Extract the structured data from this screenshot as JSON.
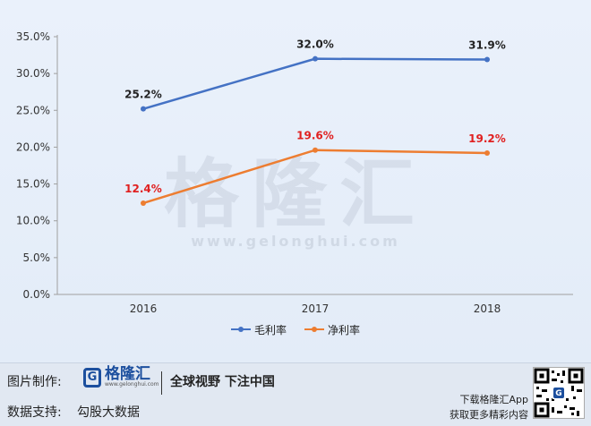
{
  "chart_data": {
    "type": "line",
    "categories": [
      "2016",
      "2017",
      "2018"
    ],
    "series": [
      {
        "name": "毛利率",
        "values": [
          25.2,
          32.0,
          31.9
        ],
        "labels": [
          "25.2%",
          "32.0%",
          "31.9%"
        ],
        "color": "#4472c4",
        "label_color": "#222222"
      },
      {
        "name": "净利率",
        "values": [
          12.4,
          19.6,
          19.2
        ],
        "labels": [
          "12.4%",
          "19.6%",
          "19.2%"
        ],
        "color": "#ed7d31",
        "label_color": "#e02020"
      }
    ],
    "ylim": [
      0,
      35
    ],
    "yticks": [
      "0.0%",
      "5.0%",
      "10.0%",
      "15.0%",
      "20.0%",
      "25.0%",
      "30.0%",
      "35.0%"
    ],
    "grid": false,
    "legend_position": "bottom",
    "watermark": {
      "brand": "格隆汇",
      "url": "www.gelonghui.com"
    }
  },
  "footer": {
    "made_by_label": "图片制作:",
    "source_label": "数据支持:",
    "source": "勾股大数据",
    "logo_name": "格隆汇",
    "logo_url": "www.gelonghui.com",
    "logo_icon": "G",
    "slogan": "全球视野 下注中国",
    "download_text": "下载格隆汇App",
    "more_text": "获取更多精彩内容"
  }
}
